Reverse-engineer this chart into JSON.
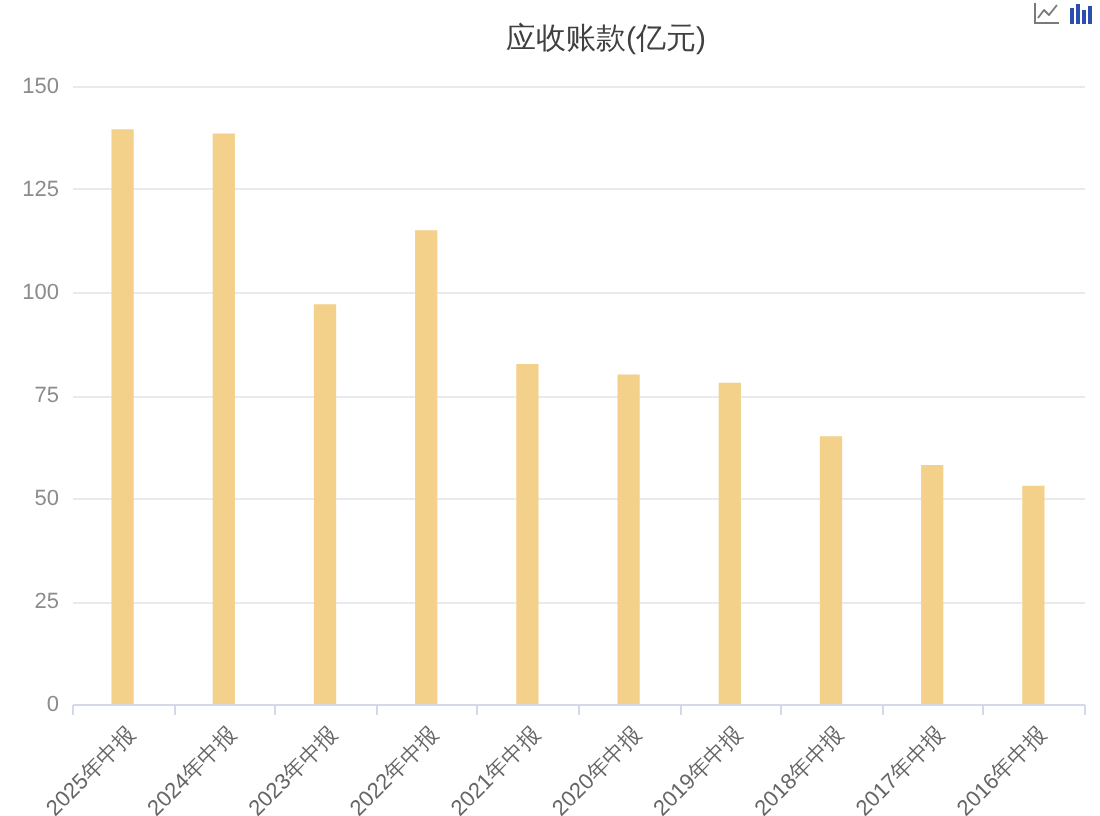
{
  "chart_data": {
    "type": "bar",
    "title": "应收账款(亿元)",
    "categories": [
      "2025年中报",
      "2024年中报",
      "2023年中报",
      "2022年中报",
      "2021年中报",
      "2020年中报",
      "2019年中报",
      "2018年中报",
      "2017年中报",
      "2016年中报"
    ],
    "values": [
      139.5,
      138.5,
      97,
      115,
      82.5,
      80,
      78,
      65,
      58,
      53
    ],
    "color": "#f4d18b",
    "ylim": [
      0,
      150
    ],
    "yticks": [
      0,
      25,
      50,
      75,
      100,
      125,
      150
    ],
    "grid": "y"
  }
}
